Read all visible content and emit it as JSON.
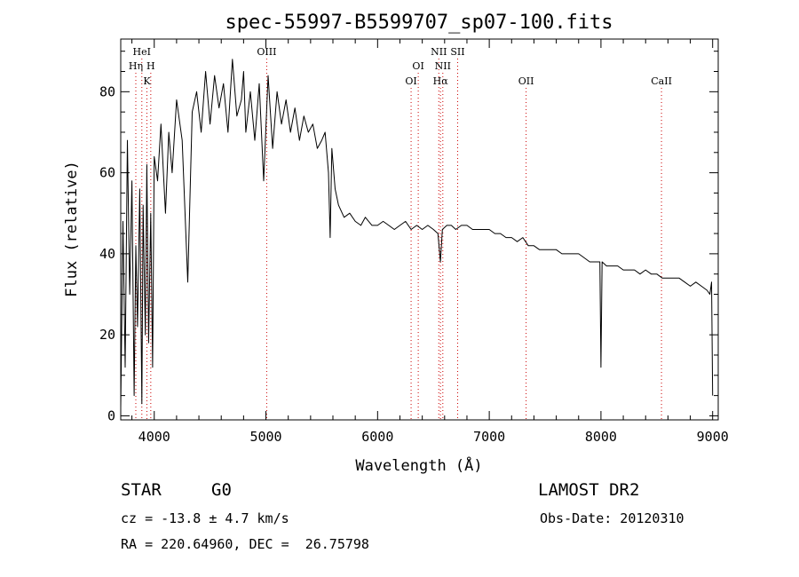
{
  "title": "spec-55997-B5599707_sp07-100.fits",
  "info": {
    "object_class": "STAR",
    "subclass": "G0",
    "survey": "LAMOST DR2",
    "redshift": "cz = -13.8 ± 4.7 km/s",
    "obs_date": "Obs-Date: 20120310",
    "coords": "RA = 220.64960, DEC =  26.75798"
  },
  "chart_data": {
    "type": "line",
    "title": "spec-55997-B5599707_sp07-100.fits",
    "xlabel": "Wavelength (Å)",
    "ylabel": "Flux (relative)",
    "xlim": [
      3700,
      9050
    ],
    "ylim": [
      -1,
      93
    ],
    "xticks": [
      4000,
      5000,
      6000,
      7000,
      8000,
      9000
    ],
    "yticks": [
      0,
      20,
      40,
      60,
      80
    ],
    "grid": false,
    "line_color": "#000000",
    "marker_color": "#cc0000",
    "lines": [
      {
        "label": "HeI",
        "x": 3889,
        "row": 1
      },
      {
        "label": "Hη",
        "x": 3835,
        "row": 2
      },
      {
        "label": "H",
        "x": 3969,
        "row": 2
      },
      {
        "label": "K",
        "x": 3934,
        "row": 3
      },
      {
        "label": "OIII",
        "x": 5007,
        "row": 1
      },
      {
        "label": "OI",
        "x": 6364,
        "row": 2
      },
      {
        "label": "OI",
        "x": 6300,
        "row": 3
      },
      {
        "label": "NII",
        "x": 6548,
        "row": 1
      },
      {
        "label": "SII",
        "x": 6717,
        "row": 1
      },
      {
        "label": "NII",
        "x": 6584,
        "row": 2
      },
      {
        "label": "Hα",
        "x": 6563,
        "row": 3
      },
      {
        "label": "OII",
        "x": 7330,
        "row": 3
      },
      {
        "label": "CaII",
        "x": 8542,
        "row": 3
      }
    ],
    "series": [
      {
        "x": [
          3700,
          3720,
          3740,
          3760,
          3780,
          3800,
          3820,
          3835,
          3850,
          3870,
          3889,
          3900,
          3920,
          3934,
          3950,
          3969,
          3985,
          4000,
          4030,
          4060,
          4101,
          4130,
          4160,
          4200,
          4250,
          4300,
          4340,
          4380,
          4420,
          4460,
          4500,
          4540,
          4580,
          4620,
          4660,
          4700,
          4740,
          4780,
          4800,
          4820,
          4861,
          4900,
          4940,
          4980,
          5020,
          5060,
          5100,
          5140,
          5180,
          5220,
          5260,
          5300,
          5340,
          5380,
          5420,
          5460,
          5500,
          5530,
          5560,
          5575,
          5590,
          5620,
          5650,
          5700,
          5750,
          5800,
          5850,
          5890,
          5950,
          6000,
          6050,
          6100,
          6150,
          6200,
          6250,
          6300,
          6350,
          6400,
          6450,
          6500,
          6540,
          6563,
          6580,
          6620,
          6660,
          6700,
          6750,
          6800,
          6850,
          6900,
          6950,
          7000,
          7050,
          7100,
          7150,
          7200,
          7250,
          7300,
          7350,
          7400,
          7450,
          7500,
          7550,
          7600,
          7650,
          7700,
          7750,
          7800,
          7850,
          7900,
          7950,
          7990,
          8000,
          8010,
          8050,
          8100,
          8150,
          8200,
          8250,
          8300,
          8350,
          8400,
          8450,
          8500,
          8550,
          8600,
          8650,
          8700,
          8750,
          8800,
          8850,
          8900,
          8950,
          8975,
          8990,
          9000
        ],
        "y": [
          2,
          48,
          12,
          68,
          30,
          58,
          5,
          42,
          22,
          56,
          3,
          52,
          20,
          62,
          18,
          50,
          12,
          64,
          58,
          72,
          50,
          70,
          60,
          78,
          68,
          33,
          75,
          80,
          70,
          85,
          72,
          84,
          76,
          82,
          70,
          88,
          74,
          78,
          85,
          70,
          80,
          68,
          82,
          58,
          84,
          66,
          80,
          72,
          78,
          70,
          76,
          68,
          74,
          70,
          72,
          66,
          68,
          70,
          60,
          44,
          66,
          56,
          52,
          49,
          50,
          48,
          47,
          49,
          47,
          47,
          48,
          47,
          46,
          47,
          48,
          46,
          47,
          46,
          47,
          46,
          45,
          38,
          46,
          47,
          47,
          46,
          47,
          47,
          46,
          46,
          46,
          46,
          45,
          45,
          44,
          44,
          43,
          44,
          42,
          42,
          41,
          41,
          41,
          41,
          40,
          40,
          40,
          40,
          39,
          38,
          38,
          38,
          12,
          38,
          37,
          37,
          37,
          36,
          36,
          36,
          35,
          36,
          35,
          35,
          34,
          34,
          34,
          34,
          33,
          32,
          33,
          32,
          31,
          30,
          33,
          5
        ]
      }
    ]
  }
}
